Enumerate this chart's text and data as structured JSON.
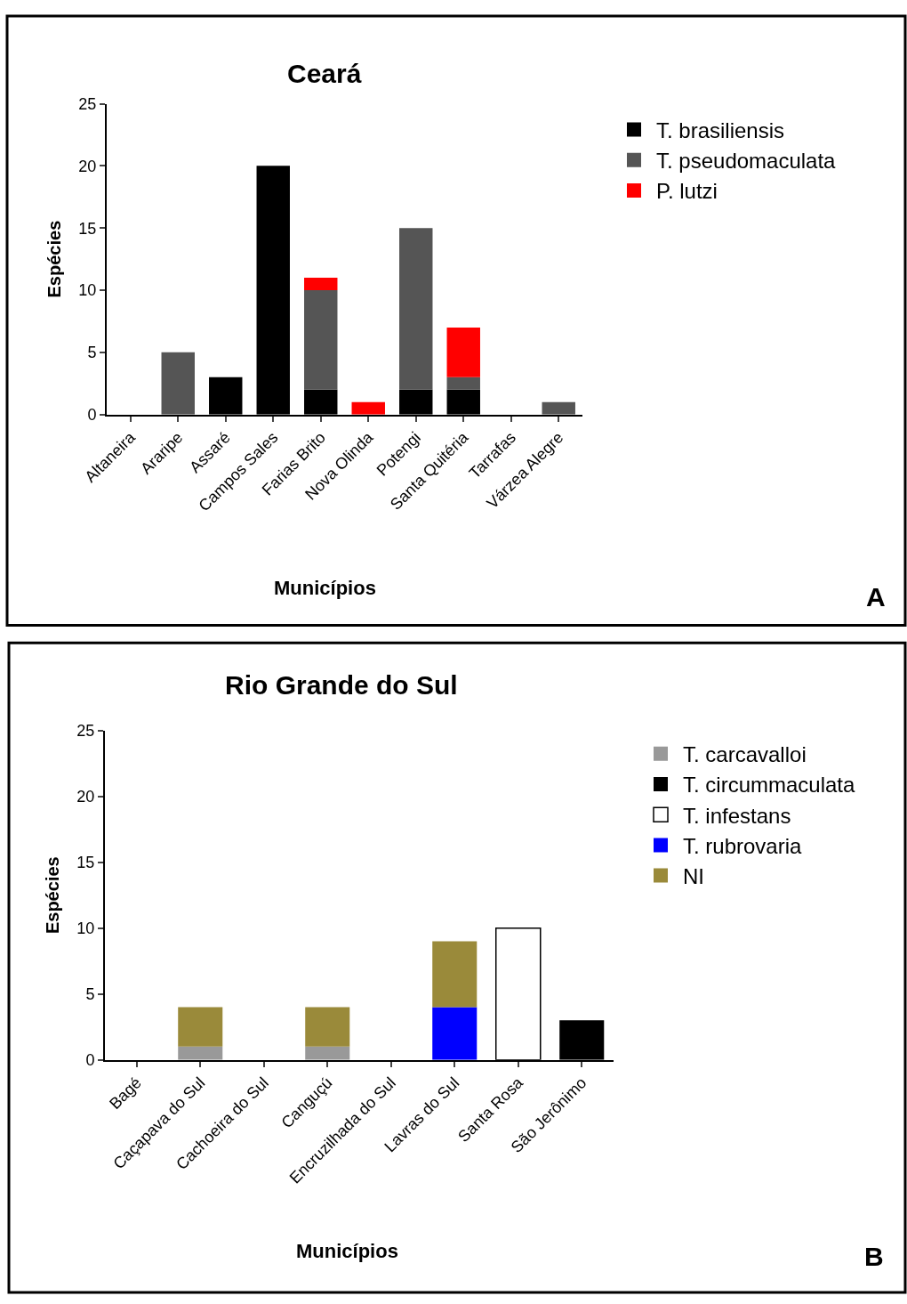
{
  "chart_data": [
    {
      "type": "bar",
      "stacked": true,
      "title": "Ceará",
      "xlabel": "Municípios",
      "ylabel": "Espécies",
      "annotations": [
        "A"
      ],
      "legend": "right",
      "ylim": [
        0,
        25
      ],
      "yticks": [
        0,
        5,
        10,
        15,
        20,
        25
      ],
      "categories": [
        "Altaneira",
        "Araripe",
        "Assaré",
        "Campos Sales",
        "Farias Brito",
        "Nova Olinda",
        "Potengi",
        "Santa Quitéria",
        "Tarrafas",
        "Várzea Alegre"
      ],
      "series": [
        {
          "name": "T. brasiliensis",
          "color": "#000000",
          "values": [
            0,
            0,
            3,
            20,
            2,
            0,
            2,
            2,
            0,
            0
          ]
        },
        {
          "name": "T. pseudomaculata",
          "color": "#555555",
          "values": [
            0,
            5,
            0,
            0,
            8,
            0,
            13,
            1,
            0,
            1
          ]
        },
        {
          "name": "P. lutzi",
          "color": "#ff0000",
          "values": [
            0,
            0,
            0,
            0,
            1,
            1,
            0,
            4,
            0,
            0
          ]
        }
      ]
    },
    {
      "type": "bar",
      "stacked": true,
      "title": "Rio Grande do Sul",
      "xlabel": "Municípios",
      "ylabel": "Espécies",
      "annotations": [
        "B"
      ],
      "legend": "right",
      "ylim": [
        0,
        25
      ],
      "yticks": [
        0,
        5,
        10,
        15,
        20,
        25
      ],
      "categories": [
        "Bagé",
        "Caçapava do Sul",
        "Cachoeira do Sul",
        "Canguçú",
        "Encruzilhada do Sul",
        "Lavras do Sul",
        "Santa Rosa",
        "São Jerônimo"
      ],
      "series": [
        {
          "name": "T. carcavalloi",
          "color": "#999999",
          "values": [
            0,
            1,
            0,
            1,
            0,
            0,
            0,
            0
          ]
        },
        {
          "name": "T. circummaculata",
          "color": "#000000",
          "values": [
            0,
            0,
            0,
            0,
            0,
            0,
            0,
            3
          ]
        },
        {
          "name": "T. infestans",
          "color": "#ffffff",
          "values": [
            0,
            0,
            0,
            0,
            0,
            0,
            10,
            0
          ]
        },
        {
          "name": "T. rubrovaria",
          "color": "#0000ff",
          "values": [
            0,
            0,
            0,
            0,
            0,
            4,
            0,
            0
          ]
        },
        {
          "name": "NI",
          "color": "#9a8a3a",
          "values": [
            0,
            3,
            0,
            3,
            0,
            5,
            0,
            0
          ]
        }
      ]
    }
  ]
}
